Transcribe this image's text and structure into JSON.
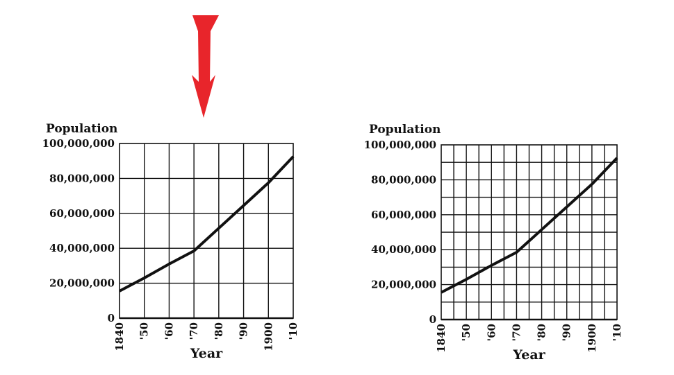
{
  "colors": {
    "arrow": "#e8252b",
    "ink": "#111111",
    "background": "#ffffff"
  },
  "arrow_icon": "down-arrow-icon",
  "chart_data": [
    {
      "type": "line",
      "ylabel": "Population",
      "xlabel": "Year",
      "x": [
        1840,
        1850,
        1860,
        1870,
        1880,
        1890,
        1900,
        1910
      ],
      "x_tick_labels": [
        "1840",
        "'50",
        "'60",
        "'70",
        "'80",
        "'90",
        "1900",
        "'10"
      ],
      "series": [
        {
          "values": [
            15500000,
            23000000,
            31000000,
            38500000,
            51500000,
            64500000,
            77500000,
            92500000
          ]
        }
      ],
      "y_tick_values": [
        0,
        20000000,
        40000000,
        60000000,
        80000000,
        100000000
      ],
      "y_tick_labels": [
        "0",
        "20,000,000",
        "40,000,000",
        "60,000,000",
        "80,000,000",
        "100,000,000"
      ],
      "xlim": [
        1840,
        1910
      ],
      "ylim": [
        0,
        100000000
      ],
      "grid": {
        "vertical_step": 10,
        "horizontal_step": 20000000
      }
    },
    {
      "type": "line",
      "ylabel": "Population",
      "xlabel": "Year",
      "x": [
        1840,
        1850,
        1860,
        1870,
        1880,
        1890,
        1900,
        1910
      ],
      "x_tick_labels": [
        "1840",
        "'50",
        "'60",
        "'70",
        "'80",
        "'90",
        "1900",
        "'10"
      ],
      "series": [
        {
          "values": [
            15500000,
            23000000,
            31000000,
            38500000,
            51500000,
            64500000,
            77500000,
            92500000
          ]
        }
      ],
      "y_tick_values": [
        0,
        20000000,
        40000000,
        60000000,
        80000000,
        100000000
      ],
      "y_tick_labels": [
        "0",
        "20,000,000",
        "40,000,000",
        "60,000,000",
        "80,000,000",
        "100,000,000"
      ],
      "xlim": [
        1840,
        1910
      ],
      "ylim": [
        0,
        100000000
      ],
      "grid": {
        "vertical_step": 5,
        "horizontal_step": 10000000
      }
    }
  ]
}
